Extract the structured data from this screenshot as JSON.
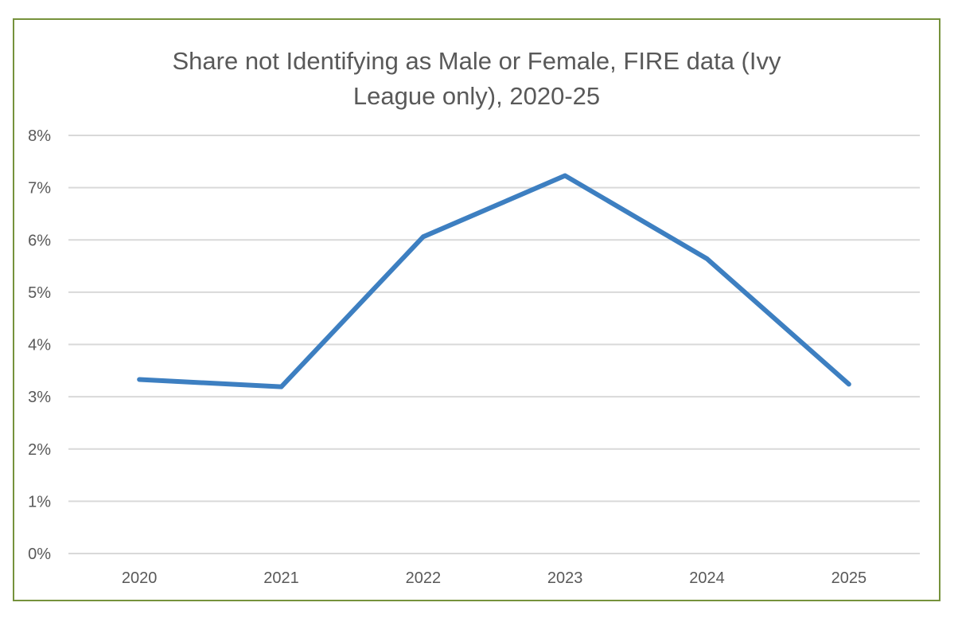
{
  "chart_data": {
    "type": "line",
    "title_lines": [
      "Share not Identifying as Male or Female, FIRE data (Ivy",
      "League only), 2020-25"
    ],
    "title": "Share not Identifying as Male or Female, FIRE data (Ivy League only), 2020-25",
    "xlabel": "",
    "ylabel": "",
    "categories": [
      "2020",
      "2021",
      "2022",
      "2023",
      "2024",
      "2025"
    ],
    "series": [
      {
        "values": [
          3.33,
          3.19,
          6.06,
          7.23,
          5.64,
          3.24
        ],
        "color": "#3d7fc1"
      }
    ],
    "ylim": [
      0,
      8
    ],
    "y_ticks": [
      "0%",
      "1%",
      "2%",
      "3%",
      "4%",
      "5%",
      "6%",
      "7%",
      "8%"
    ],
    "grid": true,
    "legend": "none"
  },
  "colors": {
    "frame_border": "#76923c",
    "gridline": "#d9d9d9",
    "text": "#595959"
  }
}
